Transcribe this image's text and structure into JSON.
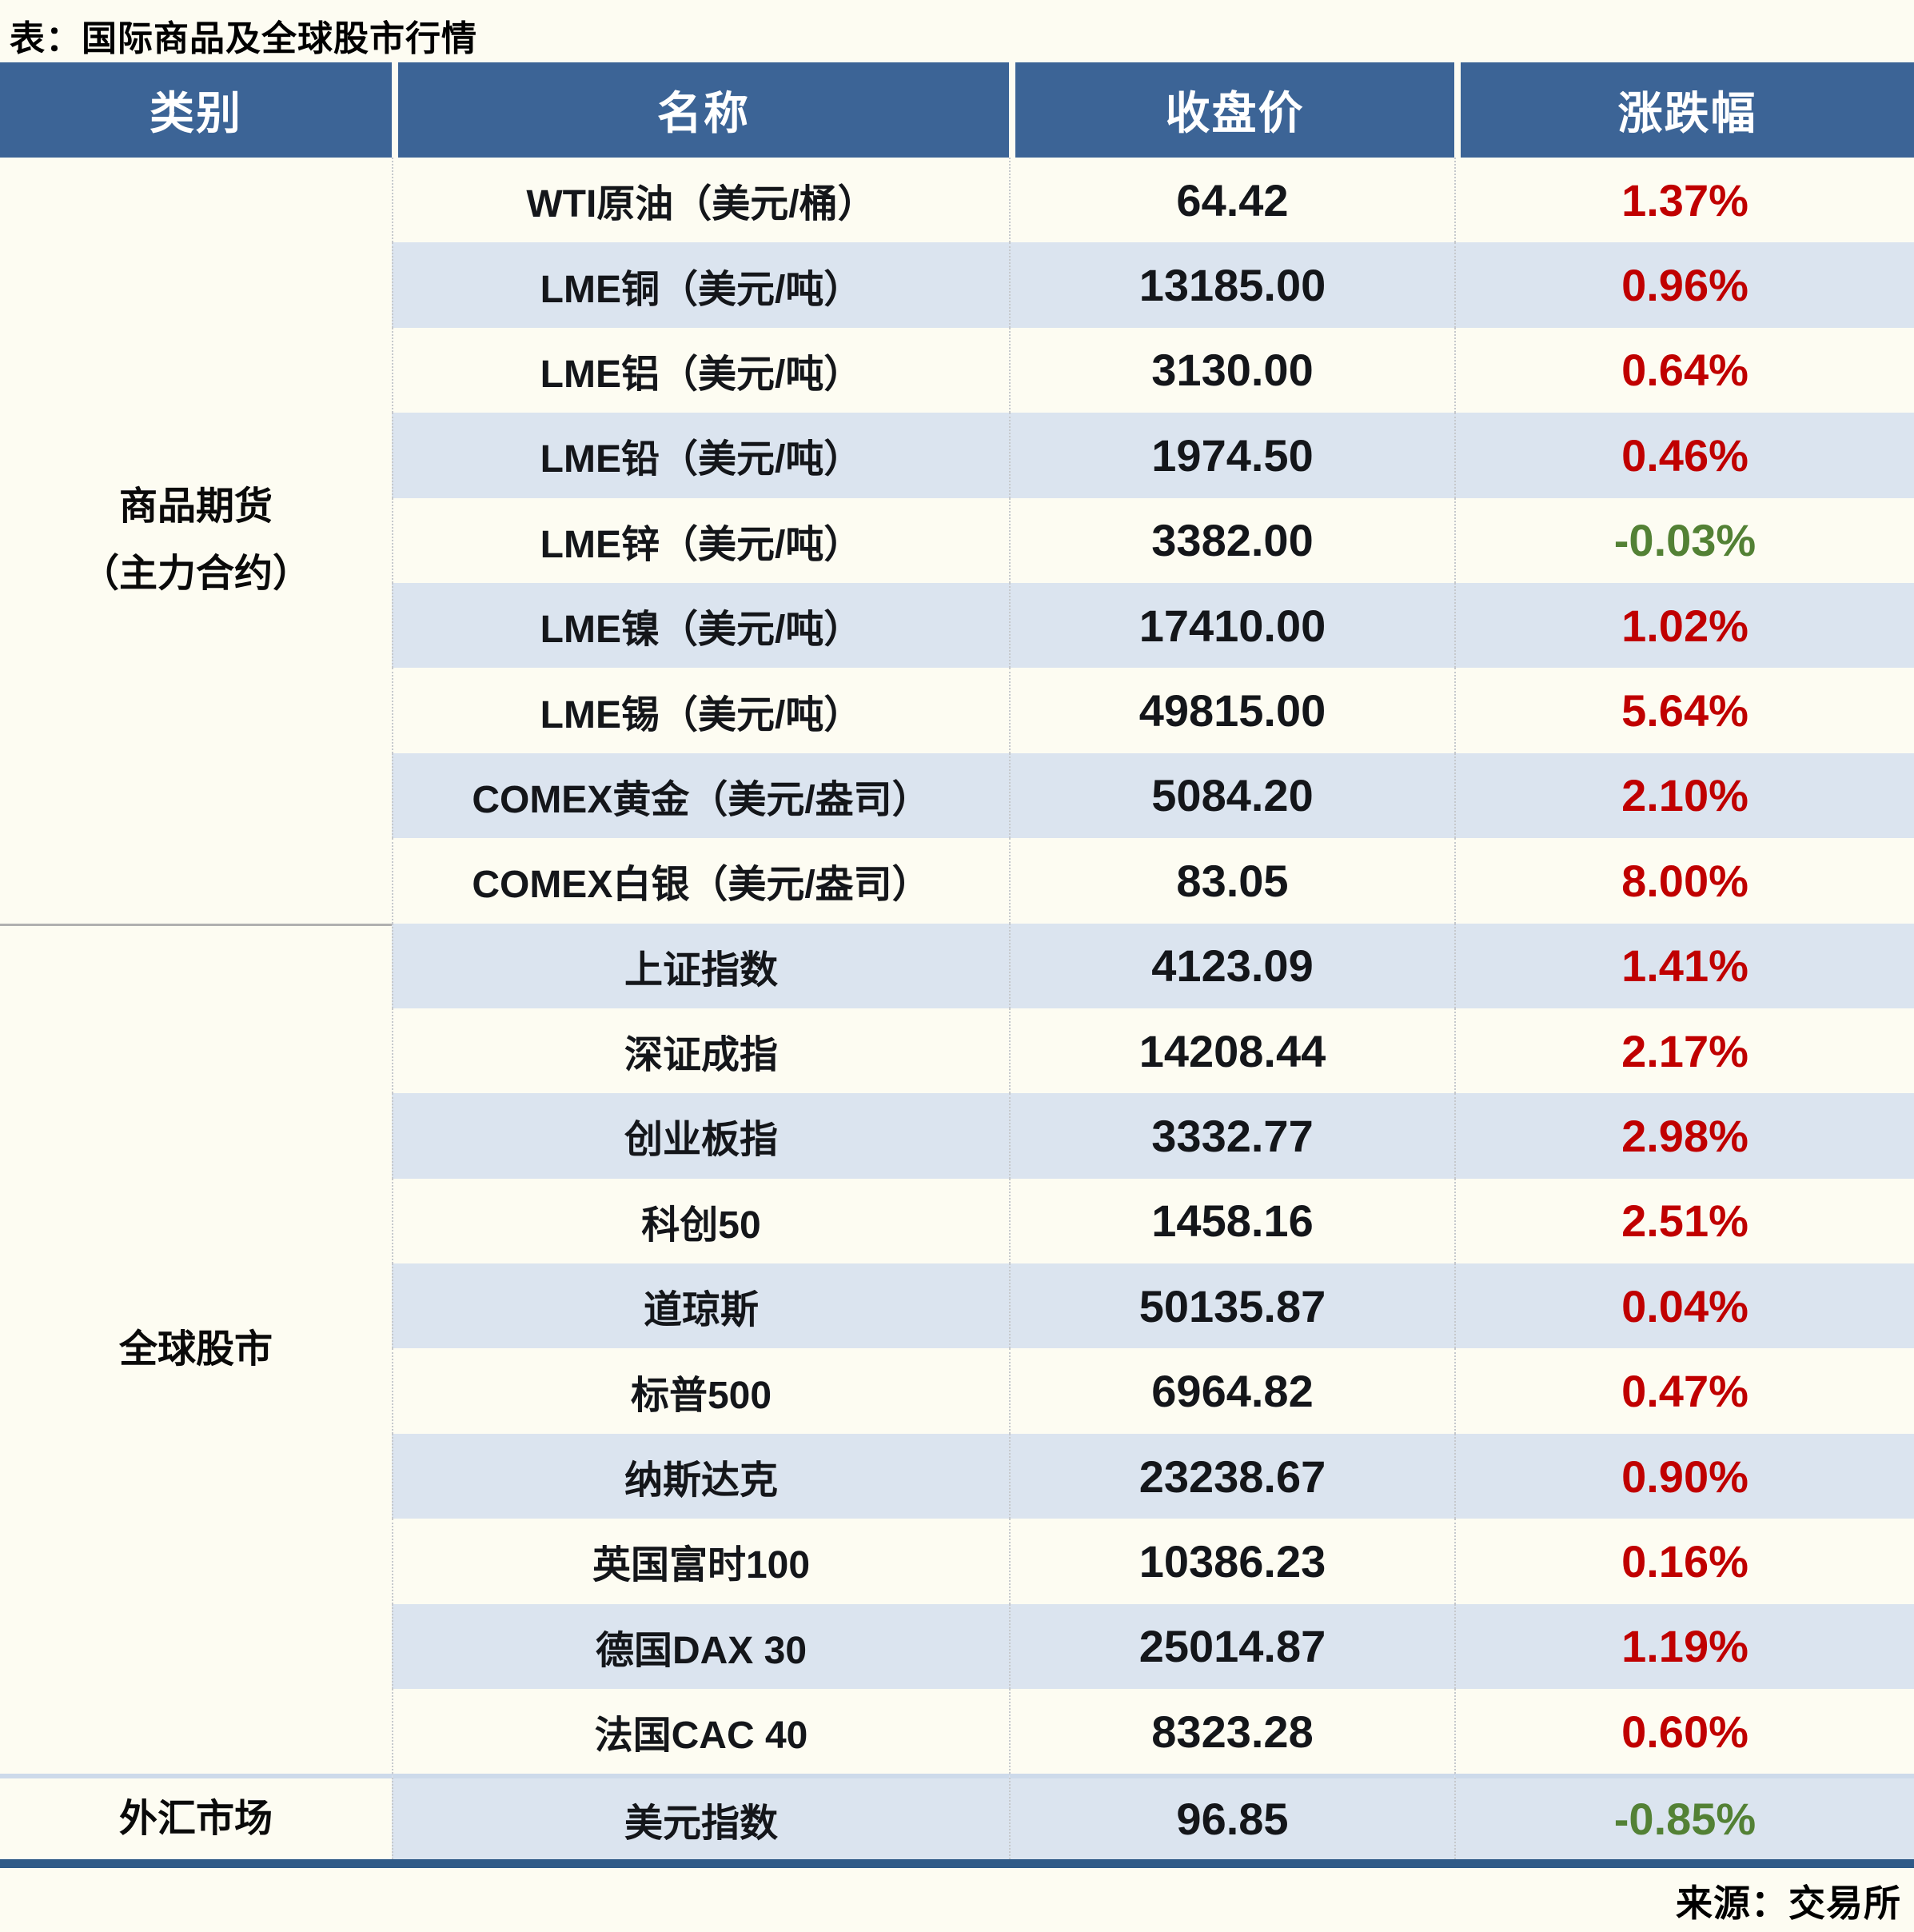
{
  "title": "表：国际商品及全球股市行情",
  "source": "来源：交易所",
  "colors": {
    "header_bg": "#3c6496",
    "alt_row_bg": "#dbe4ef",
    "page_bg": "#fdfcf2",
    "up": "#c00000",
    "down": "#538135",
    "bottom_border": "#2f5a88"
  },
  "table": {
    "headers": [
      "类别",
      "名称",
      "收盘价",
      "涨跌幅"
    ],
    "groups": [
      {
        "category_lines": [
          "商品期货",
          "（主力合约）"
        ],
        "rows": [
          {
            "name": "WTI原油（美元/桶）",
            "close": "64.42",
            "change": "1.37%",
            "dir": "up"
          },
          {
            "name": "LME铜（美元/吨）",
            "close": "13185.00",
            "change": "0.96%",
            "dir": "up"
          },
          {
            "name": "LME铝（美元/吨）",
            "close": "3130.00",
            "change": "0.64%",
            "dir": "up"
          },
          {
            "name": "LME铅（美元/吨）",
            "close": "1974.50",
            "change": "0.46%",
            "dir": "up"
          },
          {
            "name": "LME锌（美元/吨）",
            "close": "3382.00",
            "change": "-0.03%",
            "dir": "down"
          },
          {
            "name": "LME镍（美元/吨）",
            "close": "17410.00",
            "change": "1.02%",
            "dir": "up"
          },
          {
            "name": "LME锡（美元/吨）",
            "close": "49815.00",
            "change": "5.64%",
            "dir": "up"
          },
          {
            "name": "COMEX黄金（美元/盎司）",
            "close": "5084.20",
            "change": "2.10%",
            "dir": "up"
          },
          {
            "name": "COMEX白银（美元/盎司）",
            "close": "83.05",
            "change": "8.00%",
            "dir": "up"
          }
        ]
      },
      {
        "category_lines": [
          "全球股市"
        ],
        "rows": [
          {
            "name": "上证指数",
            "close": "4123.09",
            "change": "1.41%",
            "dir": "up"
          },
          {
            "name": "深证成指",
            "close": "14208.44",
            "change": "2.17%",
            "dir": "up"
          },
          {
            "name": "创业板指",
            "close": "3332.77",
            "change": "2.98%",
            "dir": "up"
          },
          {
            "name": "科创50",
            "close": "1458.16",
            "change": "2.51%",
            "dir": "up"
          },
          {
            "name": "道琼斯",
            "close": "50135.87",
            "change": "0.04%",
            "dir": "up"
          },
          {
            "name": "标普500",
            "close": "6964.82",
            "change": "0.47%",
            "dir": "up"
          },
          {
            "name": "纳斯达克",
            "close": "23238.67",
            "change": "0.90%",
            "dir": "up"
          },
          {
            "name": "英国富时100",
            "close": "10386.23",
            "change": "0.16%",
            "dir": "up"
          },
          {
            "name": "德国DAX 30",
            "close": "25014.87",
            "change": "1.19%",
            "dir": "up"
          },
          {
            "name": "法国CAC 40",
            "close": "8323.28",
            "change": "0.60%",
            "dir": "up"
          }
        ]
      },
      {
        "category_lines": [
          "外汇市场"
        ],
        "rows": [
          {
            "name": "美元指数",
            "close": "96.85",
            "change": "-0.85%",
            "dir": "down"
          }
        ]
      }
    ]
  },
  "chart_data": {
    "type": "table",
    "title": "表：国际商品及全球股市行情",
    "columns": [
      "类别",
      "名称",
      "收盘价",
      "涨跌幅"
    ],
    "rows": [
      [
        "商品期货（主力合约）",
        "WTI原油（美元/桶）",
        64.42,
        "1.37%"
      ],
      [
        "商品期货（主力合约）",
        "LME铜（美元/吨）",
        13185.0,
        "0.96%"
      ],
      [
        "商品期货（主力合约）",
        "LME铝（美元/吨）",
        3130.0,
        "0.64%"
      ],
      [
        "商品期货（主力合约）",
        "LME铅（美元/吨）",
        1974.5,
        "0.46%"
      ],
      [
        "商品期货（主力合约）",
        "LME锌（美元/吨）",
        3382.0,
        "-0.03%"
      ],
      [
        "商品期货（主力合约）",
        "LME镍（美元/吨）",
        17410.0,
        "1.02%"
      ],
      [
        "商品期货（主力合约）",
        "LME锡（美元/吨）",
        49815.0,
        "5.64%"
      ],
      [
        "商品期货（主力合约）",
        "COMEX黄金（美元/盎司）",
        5084.2,
        "2.10%"
      ],
      [
        "商品期货（主力合约）",
        "COMEX白银（美元/盎司）",
        83.05,
        "8.00%"
      ],
      [
        "全球股市",
        "上证指数",
        4123.09,
        "1.41%"
      ],
      [
        "全球股市",
        "深证成指",
        14208.44,
        "2.17%"
      ],
      [
        "全球股市",
        "创业板指",
        3332.77,
        "2.98%"
      ],
      [
        "全球股市",
        "科创50",
        1458.16,
        "2.51%"
      ],
      [
        "全球股市",
        "道琼斯",
        50135.87,
        "0.04%"
      ],
      [
        "全球股市",
        "标普500",
        6964.82,
        "0.47%"
      ],
      [
        "全球股市",
        "纳斯达克",
        23238.67,
        "0.90%"
      ],
      [
        "全球股市",
        "英国富时100",
        10386.23,
        "0.16%"
      ],
      [
        "全球股市",
        "德国DAX 30",
        25014.87,
        "1.19%"
      ],
      [
        "全球股市",
        "法国CAC 40",
        8323.28,
        "0.60%"
      ],
      [
        "外汇市场",
        "美元指数",
        96.85,
        "-0.85%"
      ]
    ]
  }
}
